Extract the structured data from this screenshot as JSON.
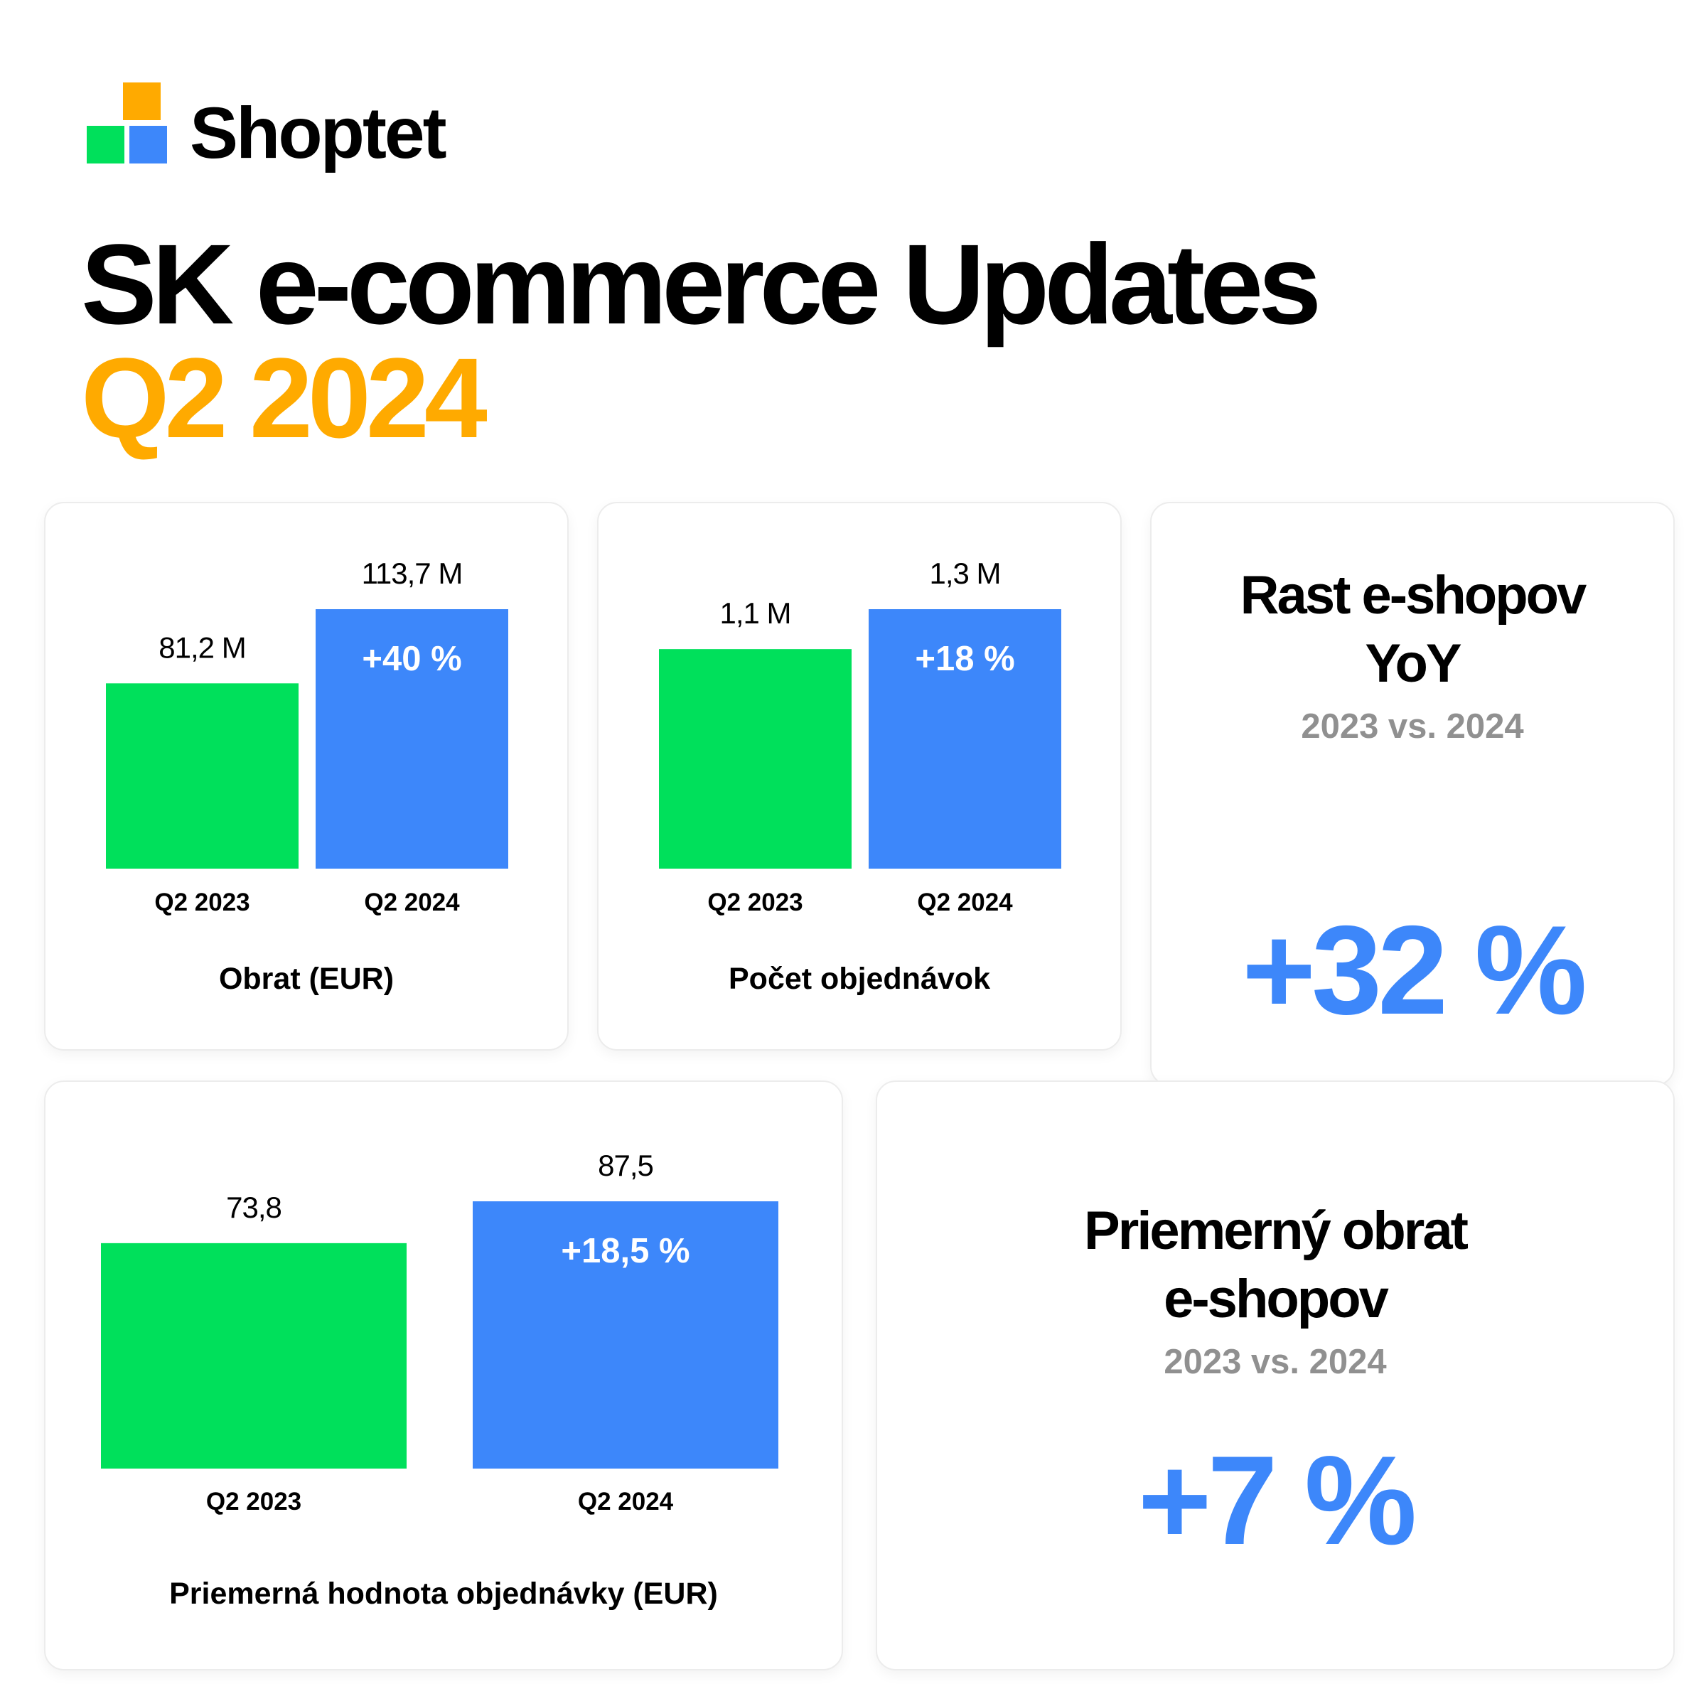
{
  "brand": {
    "name": "Shoptet"
  },
  "header": {
    "title": "SK e-commerce Updates",
    "subtitle": "Q2 2024"
  },
  "colors": {
    "green": "#00e05b",
    "blue": "#3d87fa",
    "orange": "#ffaa00",
    "grey": "#909090",
    "text": "#000000",
    "bar_label_on_blue": "#ffffff"
  },
  "chart_data": [
    {
      "type": "bar",
      "title": "Obrat  (EUR)",
      "categories": [
        "Q2 2023",
        "Q2 2024"
      ],
      "values": [
        81.2,
        113.7
      ],
      "value_labels": [
        "81,2 M",
        "113,7 M"
      ],
      "change_label": "+40 %",
      "unit": "M EUR",
      "ylim": [
        0,
        113.7
      ],
      "grid": false,
      "legend": "none"
    },
    {
      "type": "bar",
      "title": "Počet objednávok",
      "categories": [
        "Q2 2023",
        "Q2 2024"
      ],
      "values": [
        1.1,
        1.3
      ],
      "value_labels": [
        "1,1 M",
        "1,3 M"
      ],
      "change_label": "+18 %",
      "unit": "M",
      "ylim": [
        0,
        1.3
      ],
      "grid": false,
      "legend": "none"
    },
    {
      "type": "bar",
      "title": "Priemerná hodnota objednávky (EUR)",
      "categories": [
        "Q2 2023",
        "Q2 2024"
      ],
      "values": [
        73.8,
        87.5
      ],
      "value_labels": [
        "73,8",
        "87,5"
      ],
      "change_label": "+18,5 %",
      "unit": "EUR",
      "ylim": [
        0,
        87.5
      ],
      "grid": false,
      "legend": "none"
    }
  ],
  "stats": {
    "eshop_growth": {
      "label_line1": "Rast e-shopov",
      "label_line2": "YoY",
      "period": "2023 vs. 2024",
      "value": "+32 %"
    },
    "avg_turnover": {
      "label_line1": "Priemerný obrat",
      "label_line2": "e-shopov",
      "period": "2023 vs. 2024",
      "value": "+7 %"
    }
  }
}
